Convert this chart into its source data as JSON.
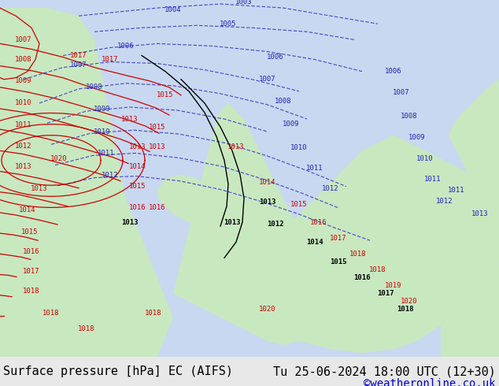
{
  "bottom_left_text": "Surface pressure [hPa] EC (AIFS)",
  "bottom_right_text": "Tu 25-06-2024 18:00 UTC (12+30)",
  "watermark": "©weatheronline.co.uk",
  "bg_color": "#e8e8e8",
  "map_bg_color": "#d4ecd4",
  "bottom_bar_color": "#d4ecd4",
  "text_color_black": "#000000",
  "text_color_blue": "#0000cc",
  "text_color_red": "#cc0000",
  "font_size_bottom": 11,
  "font_size_watermark": 10,
  "fig_width": 6.34,
  "fig_height": 4.9,
  "dpi": 100
}
